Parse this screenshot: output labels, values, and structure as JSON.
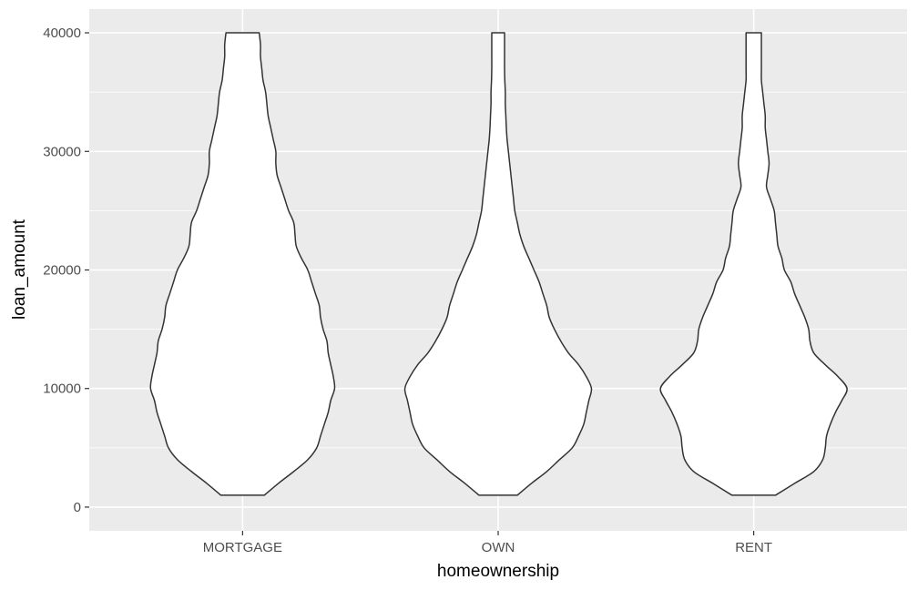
{
  "chart_data": {
    "type": "violin",
    "xlabel": "homeownership",
    "ylabel": "loan_amount",
    "categories": [
      "MORTGAGE",
      "OWN",
      "RENT"
    ],
    "ylim": [
      0,
      40000
    ],
    "yticks": [
      0,
      10000,
      20000,
      30000,
      40000
    ],
    "y_tick_labels": [
      "0",
      "10000",
      "20000",
      "30000",
      "40000"
    ],
    "grid": true,
    "colors": {
      "panel": "#ebebeb",
      "grid": "#ffffff",
      "fill": "#ffffff",
      "outline": "#333333"
    },
    "max_half_width_data": 0.36,
    "violins": [
      {
        "name": "MORTGAGE",
        "profile": [
          [
            1000,
            0.085
          ],
          [
            2000,
            0.14
          ],
          [
            3000,
            0.2
          ],
          [
            4000,
            0.255
          ],
          [
            5000,
            0.29
          ],
          [
            6000,
            0.305
          ],
          [
            7000,
            0.32
          ],
          [
            8000,
            0.335
          ],
          [
            9000,
            0.345
          ],
          [
            10000,
            0.36
          ],
          [
            11000,
            0.355
          ],
          [
            12000,
            0.345
          ],
          [
            13000,
            0.335
          ],
          [
            14000,
            0.33
          ],
          [
            15000,
            0.315
          ],
          [
            16000,
            0.305
          ],
          [
            17000,
            0.3
          ],
          [
            18000,
            0.285
          ],
          [
            19000,
            0.27
          ],
          [
            20000,
            0.255
          ],
          [
            21000,
            0.23
          ],
          [
            22000,
            0.21
          ],
          [
            23000,
            0.205
          ],
          [
            24000,
            0.2
          ],
          [
            25000,
            0.18
          ],
          [
            26000,
            0.165
          ],
          [
            27000,
            0.15
          ],
          [
            28000,
            0.135
          ],
          [
            29000,
            0.13
          ],
          [
            30000,
            0.13
          ],
          [
            31000,
            0.12
          ],
          [
            32000,
            0.11
          ],
          [
            33000,
            0.1
          ],
          [
            34000,
            0.095
          ],
          [
            35000,
            0.09
          ],
          [
            36000,
            0.08
          ],
          [
            37000,
            0.075
          ],
          [
            38000,
            0.07
          ],
          [
            39000,
            0.07
          ],
          [
            40000,
            0.065
          ]
        ]
      },
      {
        "name": "OWN",
        "profile": [
          [
            1000,
            0.075
          ],
          [
            2000,
            0.13
          ],
          [
            3000,
            0.19
          ],
          [
            4000,
            0.24
          ],
          [
            5000,
            0.29
          ],
          [
            6000,
            0.315
          ],
          [
            7000,
            0.335
          ],
          [
            8000,
            0.345
          ],
          [
            9000,
            0.355
          ],
          [
            10000,
            0.365
          ],
          [
            11000,
            0.345
          ],
          [
            12000,
            0.315
          ],
          [
            13000,
            0.275
          ],
          [
            14000,
            0.245
          ],
          [
            15000,
            0.22
          ],
          [
            16000,
            0.2
          ],
          [
            17000,
            0.19
          ],
          [
            18000,
            0.175
          ],
          [
            19000,
            0.16
          ],
          [
            20000,
            0.14
          ],
          [
            21000,
            0.12
          ],
          [
            22000,
            0.1
          ],
          [
            23000,
            0.085
          ],
          [
            24000,
            0.075
          ],
          [
            25000,
            0.065
          ],
          [
            26000,
            0.06
          ],
          [
            27000,
            0.055
          ],
          [
            28000,
            0.05
          ],
          [
            29000,
            0.045
          ],
          [
            30000,
            0.04
          ],
          [
            31000,
            0.035
          ],
          [
            32000,
            0.032
          ],
          [
            33000,
            0.03
          ],
          [
            34000,
            0.028
          ],
          [
            35000,
            0.028
          ],
          [
            36000,
            0.026
          ],
          [
            37000,
            0.025
          ],
          [
            38000,
            0.025
          ],
          [
            39000,
            0.025
          ],
          [
            40000,
            0.025
          ]
        ]
      },
      {
        "name": "RENT",
        "profile": [
          [
            1000,
            0.085
          ],
          [
            2000,
            0.16
          ],
          [
            3000,
            0.235
          ],
          [
            4000,
            0.27
          ],
          [
            5000,
            0.28
          ],
          [
            6000,
            0.285
          ],
          [
            7000,
            0.3
          ],
          [
            8000,
            0.32
          ],
          [
            9000,
            0.345
          ],
          [
            10000,
            0.365
          ],
          [
            11000,
            0.33
          ],
          [
            12000,
            0.28
          ],
          [
            13000,
            0.235
          ],
          [
            14000,
            0.22
          ],
          [
            15000,
            0.215
          ],
          [
            16000,
            0.2
          ],
          [
            17000,
            0.18
          ],
          [
            18000,
            0.16
          ],
          [
            19000,
            0.145
          ],
          [
            20000,
            0.12
          ],
          [
            21000,
            0.11
          ],
          [
            22000,
            0.095
          ],
          [
            23000,
            0.09
          ],
          [
            24000,
            0.085
          ],
          [
            25000,
            0.08
          ],
          [
            26000,
            0.065
          ],
          [
            27000,
            0.05
          ],
          [
            28000,
            0.055
          ],
          [
            29000,
            0.06
          ],
          [
            30000,
            0.055
          ],
          [
            31000,
            0.05
          ],
          [
            32000,
            0.045
          ],
          [
            33000,
            0.045
          ],
          [
            34000,
            0.04
          ],
          [
            35000,
            0.035
          ],
          [
            36000,
            0.03
          ],
          [
            37000,
            0.03
          ],
          [
            38000,
            0.03
          ],
          [
            39000,
            0.03
          ],
          [
            40000,
            0.03
          ]
        ]
      }
    ]
  }
}
